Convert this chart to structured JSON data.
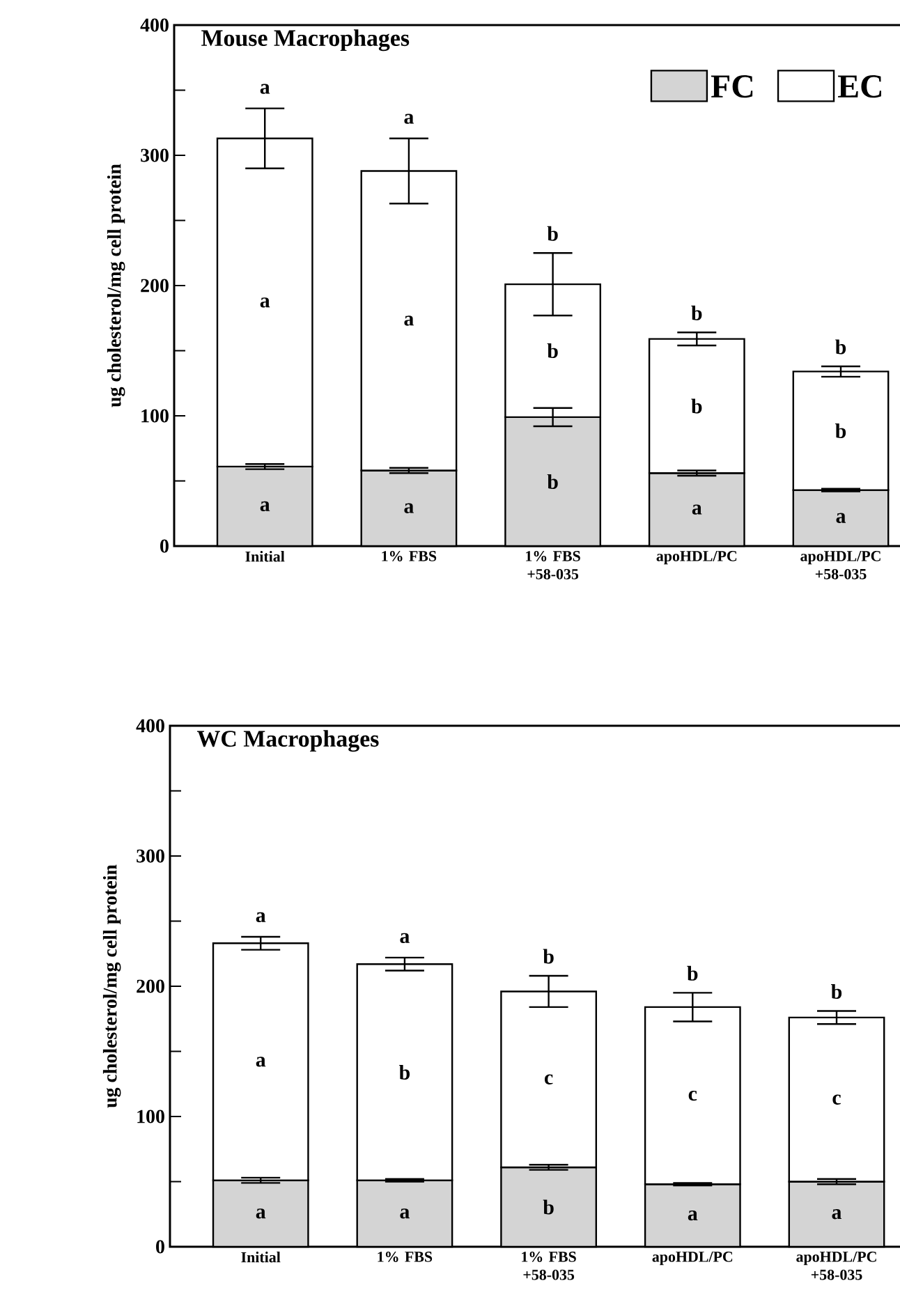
{
  "chart_data": [
    {
      "type": "bar",
      "stacked": true,
      "title": "Mouse Macrophages",
      "ylabel": "ug cholesterol/mg cell protein",
      "categories": [
        "Initial",
        "1% FBS",
        "1% FBS +58-035",
        "apoHDL/PC",
        "apoHDL/PC +58-035"
      ],
      "series": [
        {
          "name": "FC",
          "color": "#d4d4d4",
          "values": [
            61,
            58,
            99,
            56,
            43
          ],
          "errors": [
            2,
            2,
            7,
            2,
            1
          ]
        },
        {
          "name": "EC",
          "color": "#ffffff",
          "values": [
            252,
            230,
            102,
            103,
            91
          ],
          "errors": [
            23,
            25,
            24,
            5,
            4
          ]
        }
      ],
      "ylim": [
        0,
        400
      ],
      "yticks": [
        0,
        {
          "value": 50,
          "label": null
        },
        100,
        {
          "value": 150,
          "label": null
        },
        200,
        {
          "value": 250,
          "label": null
        },
        300,
        {
          "value": 350,
          "label": null
        },
        400
      ],
      "legend": "top right",
      "annotations": [
        "a",
        "a",
        "a",
        "a",
        "a",
        "a",
        "b",
        "b",
        "b",
        "b",
        "b",
        "a",
        "b",
        "b",
        "a"
      ]
    },
    {
      "type": "bar",
      "stacked": true,
      "title": "WC Macrophages",
      "ylabel": "ug cholesterol/mg cell protein",
      "categories": [
        "Initial",
        "1% FBS",
        "1% FBS +58-035",
        "apoHDL/PC",
        "apoHDL/PC +58-035"
      ],
      "series": [
        {
          "color": "#d4d4d4",
          "values": [
            51,
            51,
            61,
            48,
            50
          ],
          "errors": [
            2,
            1,
            2,
            1,
            2
          ]
        },
        {
          "color": "#ffffff",
          "values": [
            182,
            166,
            135,
            136,
            126
          ],
          "errors": [
            5,
            5,
            12,
            11,
            5
          ]
        }
      ],
      "ylim": [
        0,
        400
      ],
      "yticks": [
        0,
        {
          "value": 50,
          "label": null
        },
        100,
        {
          "value": 150,
          "label": null
        },
        200,
        {
          "value": 250,
          "label": null
        },
        300,
        {
          "value": 350,
          "label": null
        },
        400
      ],
      "annotations": [
        "a",
        "a",
        "a",
        "a",
        "b",
        "a",
        "b",
        "c",
        "b",
        "b",
        "c",
        "a",
        "b",
        "c",
        "a"
      ]
    }
  ]
}
